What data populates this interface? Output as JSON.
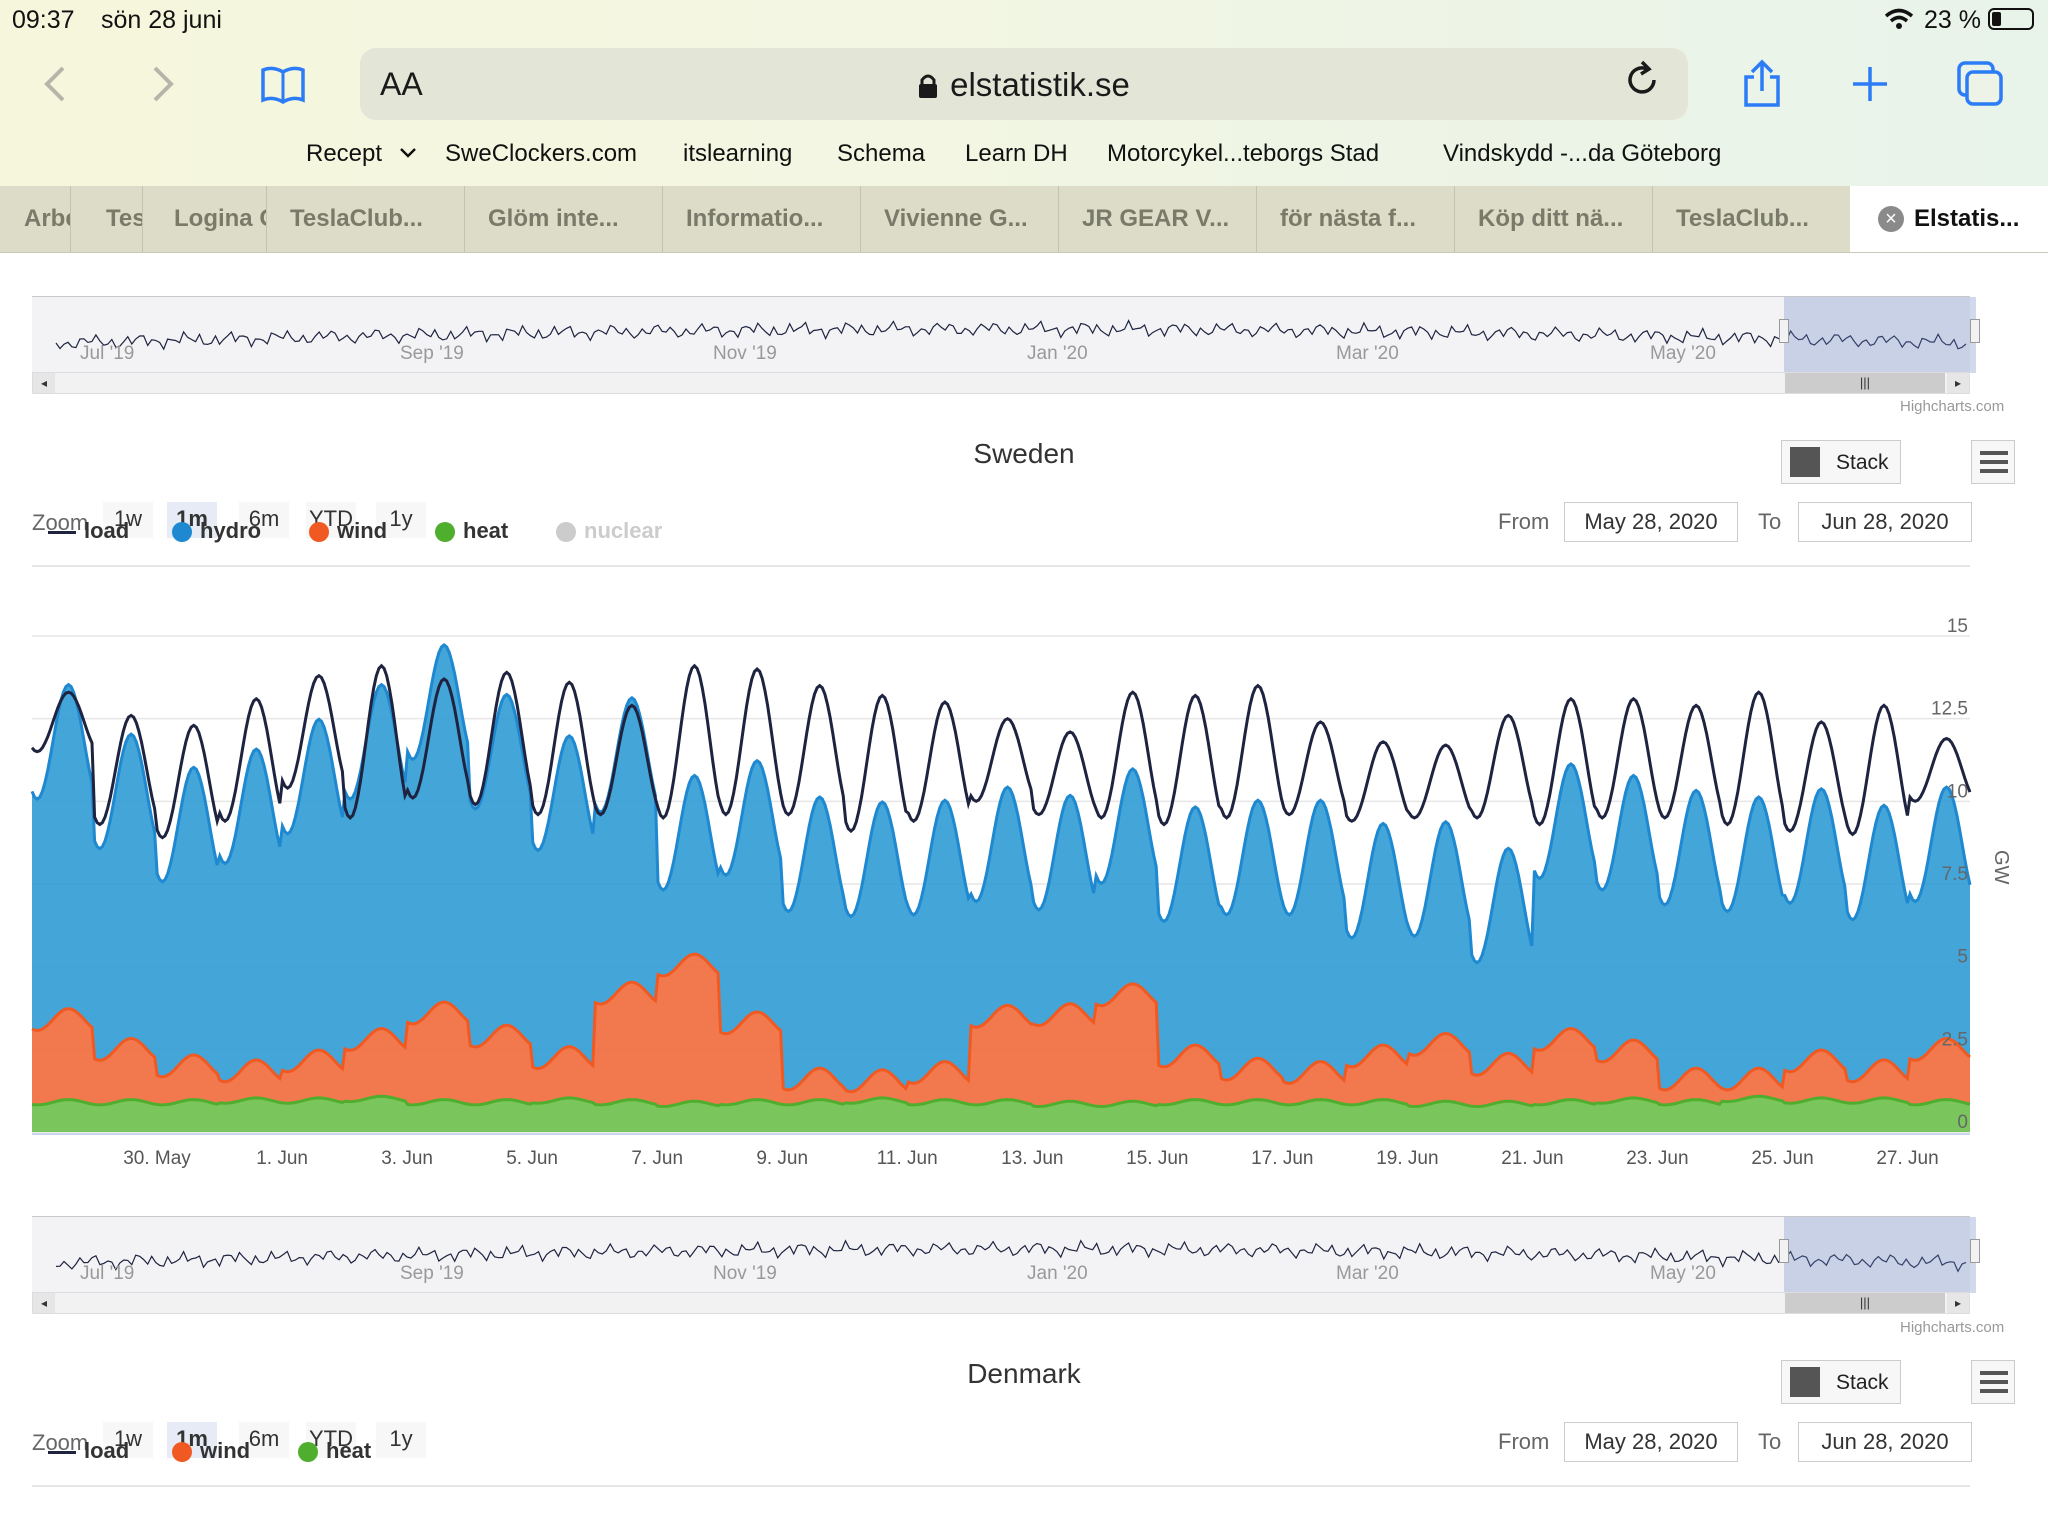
{
  "status_bar": {
    "time": "09:37",
    "date": "sön 28 juni",
    "battery": "23 %"
  },
  "browser": {
    "url": "elstatistik.se",
    "text_size_label": "AA",
    "bookmarks": [
      "Recept",
      "SweClockers.com",
      "itslearning",
      "Schema",
      "Learn DH",
      "Motorcykel...teborgs Stad",
      "Vindskydd -...da Göteborg"
    ],
    "tabs": [
      {
        "label": "Arbe"
      },
      {
        "label": "Test"
      },
      {
        "label": "Logina G"
      },
      {
        "label": "TeslaClub..."
      },
      {
        "label": "Glöm inte..."
      },
      {
        "label": "Informatio..."
      },
      {
        "label": "Vivienne G..."
      },
      {
        "label": "JR GEAR V..."
      },
      {
        "label": "för nästa f..."
      },
      {
        "label": "Köp ditt nä..."
      },
      {
        "label": "TeslaClub..."
      },
      {
        "label": "Elstatis...",
        "active": true
      }
    ]
  },
  "navigator_labels": [
    "Jul '19",
    "Sep '19",
    "Nov '19",
    "Jan '20",
    "Mar '20",
    "May '20"
  ],
  "credits": "Highcharts.com",
  "controls": {
    "zoom_label": "Zoom",
    "zoom_buttons": [
      "1w",
      "1m",
      "6m",
      "YTD",
      "1y"
    ],
    "zoom_selected": "1m",
    "stack_label": "Stack",
    "from_label": "From",
    "to_label": "To",
    "from_date": "May 28, 2020",
    "to_date": "Jun 28, 2020"
  },
  "colors": {
    "load": "#1e2340",
    "hydro": "#2f9bd4",
    "wind": "#f06a3a",
    "heat": "#5fbb46",
    "nuclear": "#cccccc"
  },
  "chart_data": [
    {
      "type": "area",
      "title": "Sweden",
      "stacked": true,
      "ylabel": "GW",
      "ylim": [
        0,
        15
      ],
      "yticks": [
        "0",
        "2.5",
        "5",
        "7.5",
        "10",
        "12.5",
        "15"
      ],
      "xlabel": "",
      "x_tick_labels": [
        "30. May",
        "1. Jun",
        "3. Jun",
        "5. Jun",
        "7. Jun",
        "9. Jun",
        "11. Jun",
        "13. Jun",
        "15. Jun",
        "17. Jun",
        "19. Jun",
        "21. Jun",
        "23. Jun",
        "25. Jun",
        "27. Jun"
      ],
      "x_start": "2020-05-28",
      "x_end": "2020-06-28",
      "legend": [
        {
          "name": "load",
          "visible": true
        },
        {
          "name": "hydro",
          "visible": true
        },
        {
          "name": "wind",
          "visible": true
        },
        {
          "name": "heat",
          "visible": true
        },
        {
          "name": "nuclear",
          "visible": false
        }
      ],
      "series": [
        {
          "name": "heat",
          "daily_avg_gw": [
            0.9,
            0.9,
            0.9,
            0.95,
            0.95,
            1.0,
            0.9,
            0.9,
            0.95,
            0.9,
            0.85,
            0.9,
            0.9,
            0.95,
            0.9,
            0.9,
            0.85,
            0.85,
            0.9,
            0.9,
            0.9,
            0.9,
            0.85,
            0.85,
            0.9,
            0.95,
            0.9,
            1.0,
            0.95,
            0.95,
            0.9
          ]
        },
        {
          "name": "wind",
          "daily_avg_gw": [
            2.5,
            1.6,
            1.1,
            0.9,
            1.2,
            1.8,
            2.7,
            2.0,
            1.3,
            3.3,
            4.2,
            2.4,
            0.7,
            0.6,
            0.9,
            2.6,
            2.7,
            3.3,
            1.4,
            1.0,
            0.9,
            1.4,
            1.8,
            1.2,
            1.9,
            1.5,
            0.7,
            0.6,
            1.2,
            0.9,
            1.6
          ]
        },
        {
          "name": "hydro",
          "daily_avg_gw": [
            8.4,
            7.8,
            7.3,
            8.0,
            8.6,
            9.0,
            9.4,
            8.6,
            8.0,
            7.2,
            4.0,
            6.2,
            6.8,
            6.7,
            6.5,
            5.2,
            4.9,
            5.1,
            5.8,
            6.4,
            6.5,
            5.3,
            5.0,
            4.8,
            6.6,
            6.6,
            7.0,
            6.8,
            6.5,
            6.3,
            6.2
          ]
        },
        {
          "name": "load",
          "daily_peak_gw": [
            13.3,
            12.6,
            12.3,
            13.1,
            13.8,
            14.1,
            13.7,
            13.9,
            13.6,
            12.9,
            14.1,
            14.0,
            13.5,
            13.2,
            13.0,
            12.5,
            12.1,
            13.3,
            13.2,
            13.5,
            12.4,
            11.8,
            11.7,
            12.6,
            13.1,
            13.1,
            12.9,
            13.3,
            12.4,
            12.9,
            11.9
          ],
          "daily_min_gw": [
            11.5,
            9.3,
            8.9,
            9.4,
            10.4,
            9.5,
            10.1,
            9.9,
            9.6,
            9.6,
            9.5,
            9.6,
            9.6,
            9.1,
            9.4,
            10.0,
            9.6,
            9.5,
            9.3,
            9.5,
            9.6,
            9.4,
            9.5,
            9.5,
            9.3,
            9.5,
            9.5,
            9.3,
            9.1,
            9.0,
            10.0
          ]
        }
      ]
    },
    {
      "type": "area",
      "title": "Denmark",
      "stacked": true,
      "legend": [
        {
          "name": "load",
          "visible": true
        },
        {
          "name": "wind",
          "visible": true
        },
        {
          "name": "heat",
          "visible": true
        }
      ]
    }
  ]
}
